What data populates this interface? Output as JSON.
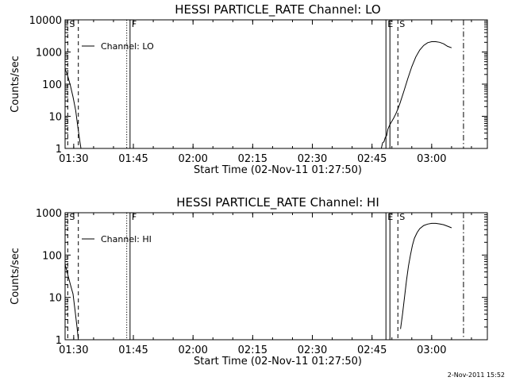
{
  "chart_data": [
    {
      "type": "line",
      "title": "HESSI PARTICLE_RATE Channel: LO",
      "xlabel": "Start Time (02-Nov-11 01:27:50)",
      "ylabel": "Counts/sec",
      "x_ticks": [
        "01:30",
        "01:45",
        "02:00",
        "02:15",
        "02:30",
        "02:45",
        "03:00"
      ],
      "y_ticks": [
        "1",
        "10",
        "100",
        "1000",
        "10000"
      ],
      "y_scale": "log",
      "xlim": [
        "01:27:50",
        "03:14:00"
      ],
      "ylim": [
        1,
        10000
      ],
      "legend": {
        "label": "Channel: LO",
        "position": "top-left"
      },
      "markers": [
        {
          "label": "S",
          "time": "01:28:30",
          "style": "dashed"
        },
        {
          "label": "",
          "time": "01:31:10",
          "style": "dashed"
        },
        {
          "label": "",
          "time": "01:43:20",
          "style": "dotted"
        },
        {
          "label": "F",
          "time": "01:44:10",
          "style": "solid"
        },
        {
          "label": "E",
          "time": "02:48:30",
          "style": "solid"
        },
        {
          "label": "",
          "time": "02:49:30",
          "style": "solid"
        },
        {
          "label": "S",
          "time": "02:51:30",
          "style": "dashed"
        },
        {
          "label": "",
          "time": "03:08:00",
          "style": "dash-dot"
        }
      ],
      "series": [
        {
          "points": [
            [
              "01:27:50",
              300
            ],
            [
              "01:28:30",
              180
            ],
            [
              "01:29:10",
              90
            ],
            [
              "01:29:50",
              40
            ],
            [
              "01:30:30",
              15
            ],
            [
              "01:31:00",
              5
            ],
            [
              "01:31:30",
              1.8
            ],
            [
              "01:31:50",
              1
            ],
            [
              "02:47:20",
              1
            ],
            [
              "02:47:40",
              1.5
            ],
            [
              "02:48:00",
              1.6
            ],
            [
              "02:48:20",
              2.2
            ],
            [
              "02:48:40",
              2.5
            ],
            [
              "02:49:00",
              4
            ],
            [
              "02:49:30",
              5.5
            ],
            [
              "02:50:00",
              7
            ],
            [
              "02:50:30",
              9
            ],
            [
              "02:51:00",
              12
            ],
            [
              "02:51:30",
              17
            ],
            [
              "02:52:00",
              25
            ],
            [
              "02:53:00",
              60
            ],
            [
              "02:54:00",
              150
            ],
            [
              "02:55:00",
              350
            ],
            [
              "02:56:00",
              700
            ],
            [
              "02:57:00",
              1150
            ],
            [
              "02:58:00",
              1600
            ],
            [
              "02:59:00",
              1950
            ],
            [
              "03:00:00",
              2100
            ],
            [
              "03:01:00",
              2100
            ],
            [
              "03:02:00",
              2000
            ],
            [
              "03:03:00",
              1800
            ],
            [
              "03:04:00",
              1500
            ],
            [
              "03:05:00",
              1350
            ]
          ]
        }
      ]
    },
    {
      "type": "line",
      "title": "HESSI PARTICLE_RATE Channel: HI",
      "xlabel": "Start Time (02-Nov-11 01:27:50)",
      "ylabel": "Counts/sec",
      "x_ticks": [
        "01:30",
        "01:45",
        "02:00",
        "02:15",
        "02:30",
        "02:45",
        "03:00"
      ],
      "y_ticks": [
        "1",
        "10",
        "100",
        "1000"
      ],
      "y_scale": "log",
      "xlim": [
        "01:27:50",
        "03:14:00"
      ],
      "ylim": [
        1,
        1000
      ],
      "legend": {
        "label": "Channel: HI",
        "position": "top-left"
      },
      "markers": [
        {
          "label": "S",
          "time": "01:28:30",
          "style": "dashed"
        },
        {
          "label": "",
          "time": "01:31:10",
          "style": "dashed"
        },
        {
          "label": "",
          "time": "01:43:20",
          "style": "dotted"
        },
        {
          "label": "F",
          "time": "01:44:10",
          "style": "solid"
        },
        {
          "label": "E",
          "time": "02:48:30",
          "style": "solid"
        },
        {
          "label": "",
          "time": "02:49:30",
          "style": "solid"
        },
        {
          "label": "S",
          "time": "02:51:30",
          "style": "dashed"
        },
        {
          "label": "",
          "time": "03:08:00",
          "style": "dash-dot"
        }
      ],
      "series": [
        {
          "points": [
            [
              "01:27:50",
              60
            ],
            [
              "01:28:30",
              35
            ],
            [
              "01:29:10",
              20
            ],
            [
              "01:29:50",
              12
            ],
            [
              "01:30:20",
              5
            ],
            [
              "01:30:50",
              2
            ],
            [
              "01:31:10",
              1
            ]
          ]
        },
        {
          "points": [
            [
              "02:52:10",
              1.8
            ],
            [
              "02:52:40",
              4
            ],
            [
              "02:53:10",
              10
            ],
            [
              "02:53:40",
              25
            ],
            [
              "02:54:10",
              55
            ],
            [
              "02:54:40",
              100
            ],
            [
              "02:55:10",
              170
            ],
            [
              "02:55:40",
              250
            ],
            [
              "02:56:20",
              340
            ],
            [
              "02:57:00",
              420
            ],
            [
              "02:58:00",
              500
            ],
            [
              "02:59:00",
              540
            ],
            [
              "03:00:00",
              560
            ],
            [
              "03:01:00",
              560
            ],
            [
              "03:02:00",
              545
            ],
            [
              "03:03:00",
              520
            ],
            [
              "03:04:00",
              480
            ],
            [
              "03:05:00",
              440
            ]
          ]
        }
      ]
    }
  ],
  "timestamp": "2-Nov-2011 15:52"
}
